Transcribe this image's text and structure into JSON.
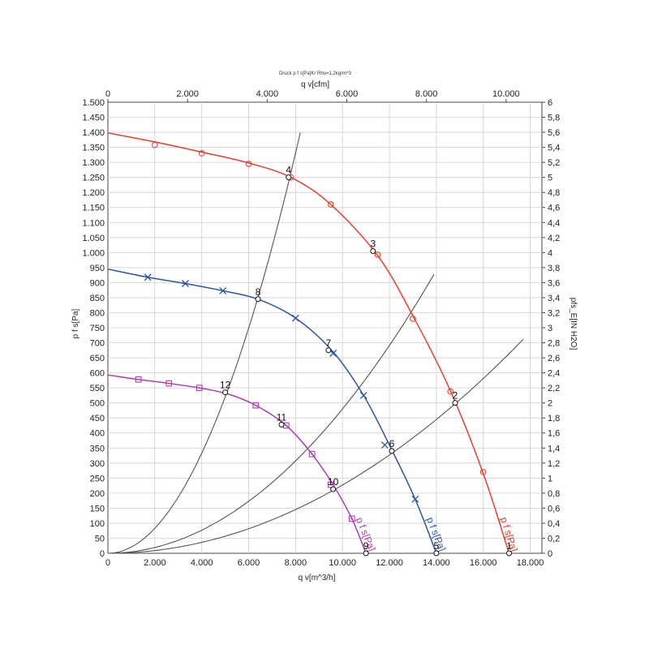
{
  "chart_data": {
    "type": "line",
    "title": "Druck p f s[Pa]Kr Rho=1,2kg/m^3",
    "xlabel": "q v[m^3/h]",
    "x2label": "q v[cfm]",
    "ylabel": "p f s[Pa]",
    "y2label": "pfs_E[IN H2O]",
    "xlim": [
      0,
      18500
    ],
    "ylim": [
      0,
      1500
    ],
    "x_ticks": [
      {
        "value": 0,
        "label": "0"
      },
      {
        "value": 2000,
        "label": "2.000"
      },
      {
        "value": 4000,
        "label": "4.000"
      },
      {
        "value": 6000,
        "label": "6.000"
      },
      {
        "value": 8000,
        "label": "8.000"
      },
      {
        "value": 10000,
        "label": "10.000"
      },
      {
        "value": 12000,
        "label": "12.000"
      },
      {
        "value": 14000,
        "label": "14.000"
      },
      {
        "value": 16000,
        "label": "16.000"
      },
      {
        "value": 18000,
        "label": "18.000"
      }
    ],
    "x2_ticks": [
      {
        "value": 0,
        "label": "0"
      },
      {
        "value": 2000,
        "label": "2.000"
      },
      {
        "value": 4000,
        "label": "4.000"
      },
      {
        "value": 6000,
        "label": "6.000"
      },
      {
        "value": 8000,
        "label": "8.000"
      },
      {
        "value": 10000,
        "label": "10.000"
      }
    ],
    "y_ticks": [
      {
        "value": 0,
        "label": "0"
      },
      {
        "value": 50,
        "label": "50"
      },
      {
        "value": 100,
        "label": "100"
      },
      {
        "value": 150,
        "label": "150"
      },
      {
        "value": 200,
        "label": "200"
      },
      {
        "value": 250,
        "label": "250"
      },
      {
        "value": 300,
        "label": "300"
      },
      {
        "value": 350,
        "label": "350"
      },
      {
        "value": 400,
        "label": "400"
      },
      {
        "value": 450,
        "label": "450"
      },
      {
        "value": 500,
        "label": "500"
      },
      {
        "value": 550,
        "label": "550"
      },
      {
        "value": 600,
        "label": "600"
      },
      {
        "value": 650,
        "label": "650"
      },
      {
        "value": 700,
        "label": "700"
      },
      {
        "value": 750,
        "label": "750"
      },
      {
        "value": 800,
        "label": "800"
      },
      {
        "value": 850,
        "label": "850"
      },
      {
        "value": 900,
        "label": "900"
      },
      {
        "value": 950,
        "label": "950"
      },
      {
        "value": 1000,
        "label": "1.000"
      },
      {
        "value": 1050,
        "label": "1.050"
      },
      {
        "value": 1100,
        "label": "1.100"
      },
      {
        "value": 1150,
        "label": "1.150"
      },
      {
        "value": 1200,
        "label": "1.200"
      },
      {
        "value": 1250,
        "label": "1.250"
      },
      {
        "value": 1300,
        "label": "1.300"
      },
      {
        "value": 1350,
        "label": "1.350"
      },
      {
        "value": 1400,
        "label": "1.400"
      },
      {
        "value": 1450,
        "label": "1.450"
      },
      {
        "value": 1500,
        "label": "1.500"
      }
    ],
    "y2_ticks": [
      {
        "value": 0,
        "label": "0"
      },
      {
        "value": 0.2,
        "label": "0,2"
      },
      {
        "value": 0.4,
        "label": "0,4"
      },
      {
        "value": 0.6,
        "label": "0,6"
      },
      {
        "value": 0.8,
        "label": "0,8"
      },
      {
        "value": 1.0,
        "label": "1"
      },
      {
        "value": 1.2,
        "label": "1,2"
      },
      {
        "value": 1.4,
        "label": "1,4"
      },
      {
        "value": 1.6,
        "label": "1,6"
      },
      {
        "value": 1.8,
        "label": "1,8"
      },
      {
        "value": 2.0,
        "label": "2"
      },
      {
        "value": 2.2,
        "label": "2,2"
      },
      {
        "value": 2.4,
        "label": "2,4"
      },
      {
        "value": 2.6,
        "label": "2,6"
      },
      {
        "value": 2.8,
        "label": "2,8"
      },
      {
        "value": 3.0,
        "label": "3"
      },
      {
        "value": 3.2,
        "label": "3,2"
      },
      {
        "value": 3.4,
        "label": "3,4"
      },
      {
        "value": 3.6,
        "label": "3,6"
      },
      {
        "value": 3.8,
        "label": "3,8"
      },
      {
        "value": 4.0,
        "label": "4"
      },
      {
        "value": 4.2,
        "label": "4,2"
      },
      {
        "value": 4.4,
        "label": "4,4"
      },
      {
        "value": 4.6,
        "label": "4,6"
      },
      {
        "value": 4.8,
        "label": "4,8"
      },
      {
        "value": 5.0,
        "label": "5"
      },
      {
        "value": 5.2,
        "label": "5,2"
      },
      {
        "value": 5.4,
        "label": "5,4"
      },
      {
        "value": 5.6,
        "label": "5,6"
      },
      {
        "value": 5.8,
        "label": "5,8"
      },
      {
        "value": 6.0,
        "label": "6"
      }
    ],
    "grid": true,
    "series": [
      {
        "name": "p f s[Pa]",
        "color": "#e8402a",
        "marker": "circle",
        "points": [
          {
            "x": 0,
            "y": 1398
          },
          {
            "x": 2000,
            "y": 1368
          },
          {
            "x": 4000,
            "y": 1334
          },
          {
            "x": 6000,
            "y": 1298
          },
          {
            "x": 7800,
            "y": 1250
          },
          {
            "x": 9500,
            "y": 1160
          },
          {
            "x": 11500,
            "y": 990
          },
          {
            "x": 13000,
            "y": 790
          },
          {
            "x": 14600,
            "y": 540
          },
          {
            "x": 16000,
            "y": 265
          },
          {
            "x": 17100,
            "y": 0
          }
        ],
        "markers": [
          {
            "x": 2000,
            "y": 1358
          },
          {
            "x": 4000,
            "y": 1330
          },
          {
            "x": 6000,
            "y": 1295
          },
          {
            "x": 7800,
            "y": 1250
          },
          {
            "x": 9500,
            "y": 1160
          },
          {
            "x": 11500,
            "y": 993
          },
          {
            "x": 13000,
            "y": 780
          },
          {
            "x": 14600,
            "y": 538
          },
          {
            "x": 16000,
            "y": 270
          }
        ]
      },
      {
        "name": "p f s[Pa]",
        "color": "#2b55a8",
        "marker": "x",
        "points": [
          {
            "x": 0,
            "y": 945
          },
          {
            "x": 1700,
            "y": 918
          },
          {
            "x": 3300,
            "y": 897
          },
          {
            "x": 4900,
            "y": 873
          },
          {
            "x": 6400,
            "y": 845
          },
          {
            "x": 8000,
            "y": 782
          },
          {
            "x": 9600,
            "y": 670
          },
          {
            "x": 10900,
            "y": 525
          },
          {
            "x": 12000,
            "y": 360
          },
          {
            "x": 13100,
            "y": 180
          },
          {
            "x": 14000,
            "y": 0
          }
        ],
        "markers": [
          {
            "x": 1700,
            "y": 918
          },
          {
            "x": 3300,
            "y": 897
          },
          {
            "x": 4900,
            "y": 873
          },
          {
            "x": 8000,
            "y": 782
          },
          {
            "x": 9600,
            "y": 665
          },
          {
            "x": 10900,
            "y": 525
          },
          {
            "x": 11800,
            "y": 360
          },
          {
            "x": 13100,
            "y": 180
          }
        ]
      },
      {
        "name": "p f s[Pa]",
        "color": "#b03cb0",
        "marker": "square",
        "points": [
          {
            "x": 0,
            "y": 593
          },
          {
            "x": 1300,
            "y": 578
          },
          {
            "x": 2600,
            "y": 565
          },
          {
            "x": 3900,
            "y": 550
          },
          {
            "x": 5100,
            "y": 530
          },
          {
            "x": 6300,
            "y": 492
          },
          {
            "x": 7600,
            "y": 425
          },
          {
            "x": 8700,
            "y": 330
          },
          {
            "x": 9600,
            "y": 228
          },
          {
            "x": 10400,
            "y": 115
          },
          {
            "x": 11000,
            "y": 0
          }
        ],
        "markers": [
          {
            "x": 1300,
            "y": 578
          },
          {
            "x": 2600,
            "y": 565
          },
          {
            "x": 3900,
            "y": 550
          },
          {
            "x": 6300,
            "y": 492
          },
          {
            "x": 7600,
            "y": 425
          },
          {
            "x": 8700,
            "y": 330
          },
          {
            "x": 9500,
            "y": 228
          },
          {
            "x": 10400,
            "y": 115
          }
        ]
      }
    ],
    "system_curves": [
      {
        "color": "#555555",
        "k": 2.08e-05,
        "x_max": 8200
      },
      {
        "color": "#555555",
        "k": 4.8e-06,
        "x_max": 13900
      },
      {
        "color": "#555555",
        "k": 2.27e-06,
        "x_max": 17700
      }
    ],
    "operating_points": [
      {
        "label": "1",
        "x": 17100,
        "y": 0
      },
      {
        "label": "2",
        "x": 14800,
        "y": 500
      },
      {
        "label": "3",
        "x": 11300,
        "y": 1005
      },
      {
        "label": "4",
        "x": 7700,
        "y": 1250
      },
      {
        "label": "5",
        "x": 14000,
        "y": 0
      },
      {
        "label": "6",
        "x": 12100,
        "y": 340
      },
      {
        "label": "7",
        "x": 9400,
        "y": 675
      },
      {
        "label": "8",
        "x": 6400,
        "y": 845
      },
      {
        "label": "9",
        "x": 11000,
        "y": 0
      },
      {
        "label": "10",
        "x": 9600,
        "y": 213
      },
      {
        "label": "11",
        "x": 7400,
        "y": 428
      },
      {
        "label": "12",
        "x": 5000,
        "y": 535
      }
    ]
  }
}
